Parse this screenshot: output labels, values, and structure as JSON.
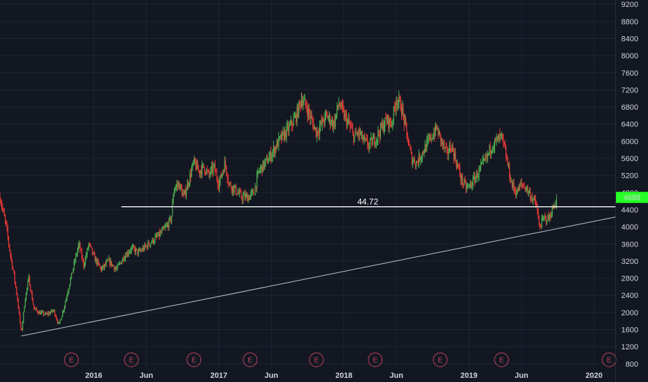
{
  "chart_data": {
    "type": "candlestick",
    "y_axis": {
      "min": 700,
      "max": 9300,
      "position": "right",
      "ticks": [
        800,
        1200,
        1600,
        2000,
        2400,
        2800,
        3200,
        3600,
        4000,
        4400,
        4800,
        5200,
        5600,
        6000,
        6400,
        6800,
        7200,
        7600,
        8000,
        8400,
        8800,
        9200
      ]
    },
    "x_axis": {
      "min": 2015.25,
      "max": 2020.17,
      "ticks": [
        {
          "x": 2016.0,
          "label": "2016"
        },
        {
          "x": 2016.42,
          "label": "Jun"
        },
        {
          "x": 2017.0,
          "label": "2017"
        },
        {
          "x": 2017.42,
          "label": "Jun"
        },
        {
          "x": 2018.0,
          "label": "2018"
        },
        {
          "x": 2018.42,
          "label": "Jun"
        },
        {
          "x": 2019.0,
          "label": "2019"
        },
        {
          "x": 2019.42,
          "label": "Jun"
        },
        {
          "x": 2020.0,
          "label": "2020"
        }
      ]
    },
    "grid": true,
    "price_path": [
      [
        2015.25,
        4700
      ],
      [
        2015.3,
        4000
      ],
      [
        2015.33,
        3400
      ],
      [
        2015.36,
        2900
      ],
      [
        2015.39,
        2300
      ],
      [
        2015.42,
        1500
      ],
      [
        2015.45,
        2300
      ],
      [
        2015.48,
        2800
      ],
      [
        2015.52,
        2100
      ],
      [
        2015.56,
        2000
      ],
      [
        2015.62,
        1950
      ],
      [
        2015.68,
        2050
      ],
      [
        2015.72,
        1700
      ],
      [
        2015.76,
        2100
      ],
      [
        2015.8,
        2600
      ],
      [
        2015.84,
        3100
      ],
      [
        2015.88,
        3600
      ],
      [
        2015.92,
        3100
      ],
      [
        2015.96,
        3600
      ],
      [
        2016.0,
        3300
      ],
      [
        2016.06,
        3000
      ],
      [
        2016.12,
        3200
      ],
      [
        2016.18,
        3000
      ],
      [
        2016.24,
        3300
      ],
      [
        2016.3,
        3500
      ],
      [
        2016.36,
        3400
      ],
      [
        2016.44,
        3600
      ],
      [
        2016.52,
        3800
      ],
      [
        2016.58,
        4000
      ],
      [
        2016.62,
        4200
      ],
      [
        2016.64,
        4900
      ],
      [
        2016.68,
        5000
      ],
      [
        2016.72,
        4700
      ],
      [
        2016.76,
        5100
      ],
      [
        2016.8,
        5500
      ],
      [
        2016.84,
        5300
      ],
      [
        2016.88,
        5400
      ],
      [
        2016.92,
        5200
      ],
      [
        2016.96,
        5400
      ],
      [
        2017.0,
        5000
      ],
      [
        2017.05,
        5500
      ],
      [
        2017.08,
        5000
      ],
      [
        2017.12,
        4900
      ],
      [
        2017.18,
        4700
      ],
      [
        2017.24,
        4700
      ],
      [
        2017.28,
        4800
      ],
      [
        2017.32,
        5300
      ],
      [
        2017.4,
        5600
      ],
      [
        2017.48,
        6000
      ],
      [
        2017.56,
        6300
      ],
      [
        2017.62,
        6600
      ],
      [
        2017.66,
        7000
      ],
      [
        2017.7,
        6800
      ],
      [
        2017.74,
        6500
      ],
      [
        2017.78,
        6200
      ],
      [
        2017.82,
        6400
      ],
      [
        2017.86,
        6600
      ],
      [
        2017.92,
        6400
      ],
      [
        2017.96,
        6900
      ],
      [
        2018.0,
        6600
      ],
      [
        2018.04,
        6400
      ],
      [
        2018.08,
        6100
      ],
      [
        2018.12,
        6200
      ],
      [
        2018.16,
        6000
      ],
      [
        2018.2,
        5900
      ],
      [
        2018.26,
        6100
      ],
      [
        2018.3,
        6300
      ],
      [
        2018.34,
        6500
      ],
      [
        2018.38,
        6400
      ],
      [
        2018.42,
        7000
      ],
      [
        2018.46,
        6800
      ],
      [
        2018.5,
        6200
      ],
      [
        2018.54,
        5600
      ],
      [
        2018.58,
        5500
      ],
      [
        2018.62,
        5700
      ],
      [
        2018.66,
        5900
      ],
      [
        2018.7,
        6100
      ],
      [
        2018.74,
        6300
      ],
      [
        2018.78,
        6000
      ],
      [
        2018.82,
        5700
      ],
      [
        2018.86,
        5900
      ],
      [
        2018.9,
        5500
      ],
      [
        2018.94,
        5100
      ],
      [
        2018.98,
        4900
      ],
      [
        2019.02,
        5000
      ],
      [
        2019.06,
        5200
      ],
      [
        2019.1,
        5400
      ],
      [
        2019.14,
        5600
      ],
      [
        2019.18,
        5900
      ],
      [
        2019.22,
        6000
      ],
      [
        2019.26,
        6100
      ],
      [
        2019.3,
        5600
      ],
      [
        2019.34,
        5000
      ],
      [
        2019.38,
        4800
      ],
      [
        2019.42,
        5000
      ],
      [
        2019.46,
        4900
      ],
      [
        2019.5,
        4700
      ],
      [
        2019.54,
        4500
      ],
      [
        2019.56,
        4000
      ],
      [
        2019.6,
        4200
      ],
      [
        2019.64,
        4200
      ],
      [
        2019.68,
        4500
      ],
      [
        2019.7,
        4650
      ]
    ],
    "horizontal_line": {
      "y": 4470,
      "x_start": 2016.22,
      "x_end": 2020.17,
      "label": "44.72"
    },
    "trend_line": {
      "x1": 2015.42,
      "y1": 1450,
      "x2": 2020.17,
      "y2": 4230
    },
    "earnings_markers": [
      {
        "x": 2015.82,
        "label": "E"
      },
      {
        "x": 2016.3,
        "label": "E"
      },
      {
        "x": 2016.8,
        "label": "E"
      },
      {
        "x": 2017.25,
        "label": "E"
      },
      {
        "x": 2017.78,
        "label": "E"
      },
      {
        "x": 2018.25,
        "label": "E"
      },
      {
        "x": 2018.77,
        "label": "E"
      },
      {
        "x": 2019.26,
        "label": "E"
      },
      {
        "x": 2020.12,
        "label": "E"
      }
    ],
    "last_price": {
      "value": 4688,
      "label": "4688",
      "color": "#26ff26"
    },
    "colors": {
      "background": "#131722",
      "up": "#4caf50",
      "down": "#e53935",
      "line": "#ffffff",
      "trend": "#bfc4cc",
      "earnings": "#c2455a"
    }
  }
}
